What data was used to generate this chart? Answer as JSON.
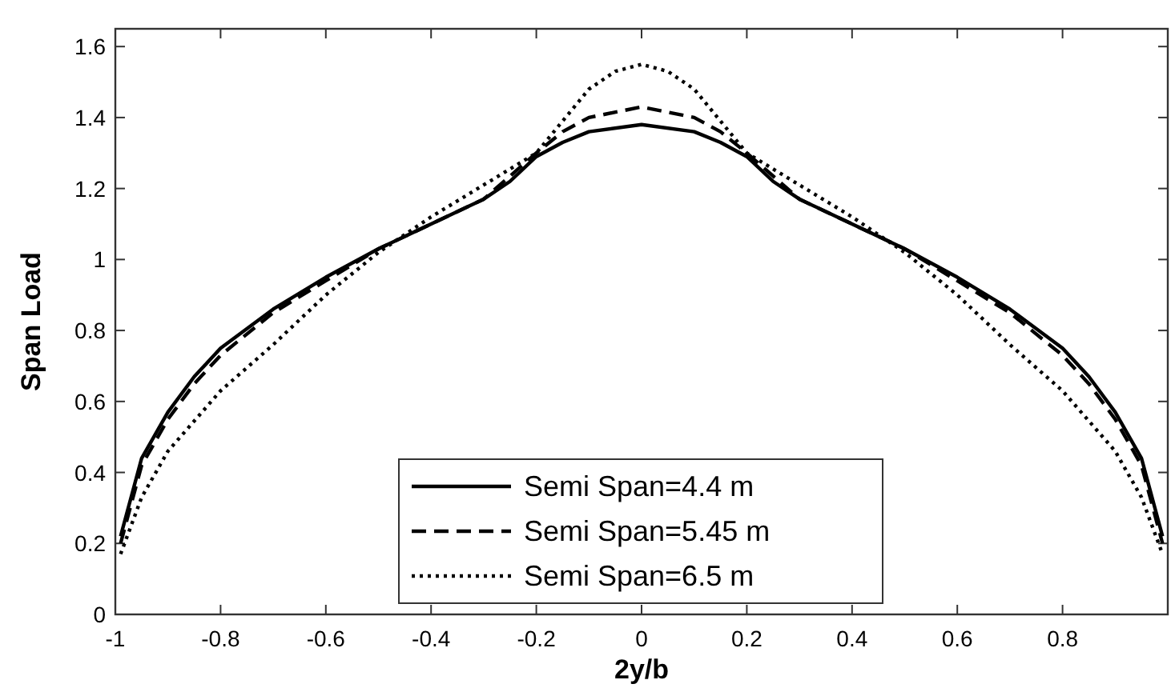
{
  "chart_data": {
    "type": "line",
    "xlabel": "2y/b",
    "ylabel": "Span Load",
    "xlim": [
      -1,
      1
    ],
    "ylim": [
      0,
      1.65
    ],
    "xticks": [
      -1,
      -0.8,
      -0.6,
      -0.4,
      -0.2,
      0,
      0.2,
      0.4,
      0.6,
      0.8,
      {
        "value": 1,
        "label": null
      }
    ],
    "yticks": [
      0,
      0.2,
      0.4,
      0.6,
      0.8,
      1,
      1.2,
      1.4,
      1.6
    ],
    "legend": "bottom",
    "grid": false,
    "marker": "none",
    "series": [
      {
        "name": "Semi Span=4.4 m",
        "color": "#000000",
        "line_style": "solid",
        "x": [
          -0.99,
          -0.95,
          -0.9,
          -0.85,
          -0.8,
          -0.7,
          -0.6,
          -0.5,
          -0.4,
          -0.3,
          -0.25,
          -0.2,
          -0.15,
          -0.1,
          0,
          0.1,
          0.15,
          0.2,
          0.25,
          0.3,
          0.4,
          0.5,
          0.6,
          0.7,
          0.8,
          0.85,
          0.9,
          0.95,
          0.99
        ],
        "values": [
          0.22,
          0.44,
          0.57,
          0.67,
          0.75,
          0.86,
          0.95,
          1.03,
          1.1,
          1.17,
          1.22,
          1.29,
          1.33,
          1.36,
          1.38,
          1.36,
          1.33,
          1.29,
          1.22,
          1.17,
          1.1,
          1.03,
          0.95,
          0.86,
          0.75,
          0.67,
          0.57,
          0.44,
          0.22
        ]
      },
      {
        "name": "Semi Span=5.45 m",
        "color": "#000000",
        "line_style": "dashed",
        "x": [
          -0.99,
          -0.95,
          -0.9,
          -0.85,
          -0.8,
          -0.7,
          -0.6,
          -0.5,
          -0.4,
          -0.3,
          -0.2,
          -0.15,
          -0.1,
          0,
          0.1,
          0.15,
          0.2,
          0.3,
          0.4,
          0.5,
          0.6,
          0.7,
          0.8,
          0.85,
          0.9,
          0.95,
          0.99
        ],
        "values": [
          0.2,
          0.42,
          0.55,
          0.65,
          0.73,
          0.85,
          0.94,
          1.03,
          1.1,
          1.17,
          1.3,
          1.36,
          1.4,
          1.43,
          1.4,
          1.36,
          1.3,
          1.17,
          1.1,
          1.03,
          0.94,
          0.85,
          0.73,
          0.65,
          0.55,
          0.42,
          0.2
        ]
      },
      {
        "name": "Semi Span=6.5 m",
        "color": "#000000",
        "line_style": "dotted",
        "x": [
          -0.99,
          -0.95,
          -0.9,
          -0.8,
          -0.7,
          -0.6,
          -0.5,
          -0.4,
          -0.3,
          -0.2,
          -0.15,
          -0.1,
          -0.05,
          0,
          0.05,
          0.1,
          0.15,
          0.2,
          0.3,
          0.4,
          0.5,
          0.6,
          0.7,
          0.8,
          0.9,
          0.95,
          0.99
        ],
        "values": [
          0.17,
          0.33,
          0.46,
          0.63,
          0.76,
          0.9,
          1.02,
          1.12,
          1.21,
          1.3,
          1.39,
          1.48,
          1.53,
          1.55,
          1.53,
          1.48,
          1.39,
          1.3,
          1.21,
          1.12,
          1.02,
          0.9,
          0.76,
          0.63,
          0.46,
          0.33,
          0.17
        ]
      }
    ]
  }
}
